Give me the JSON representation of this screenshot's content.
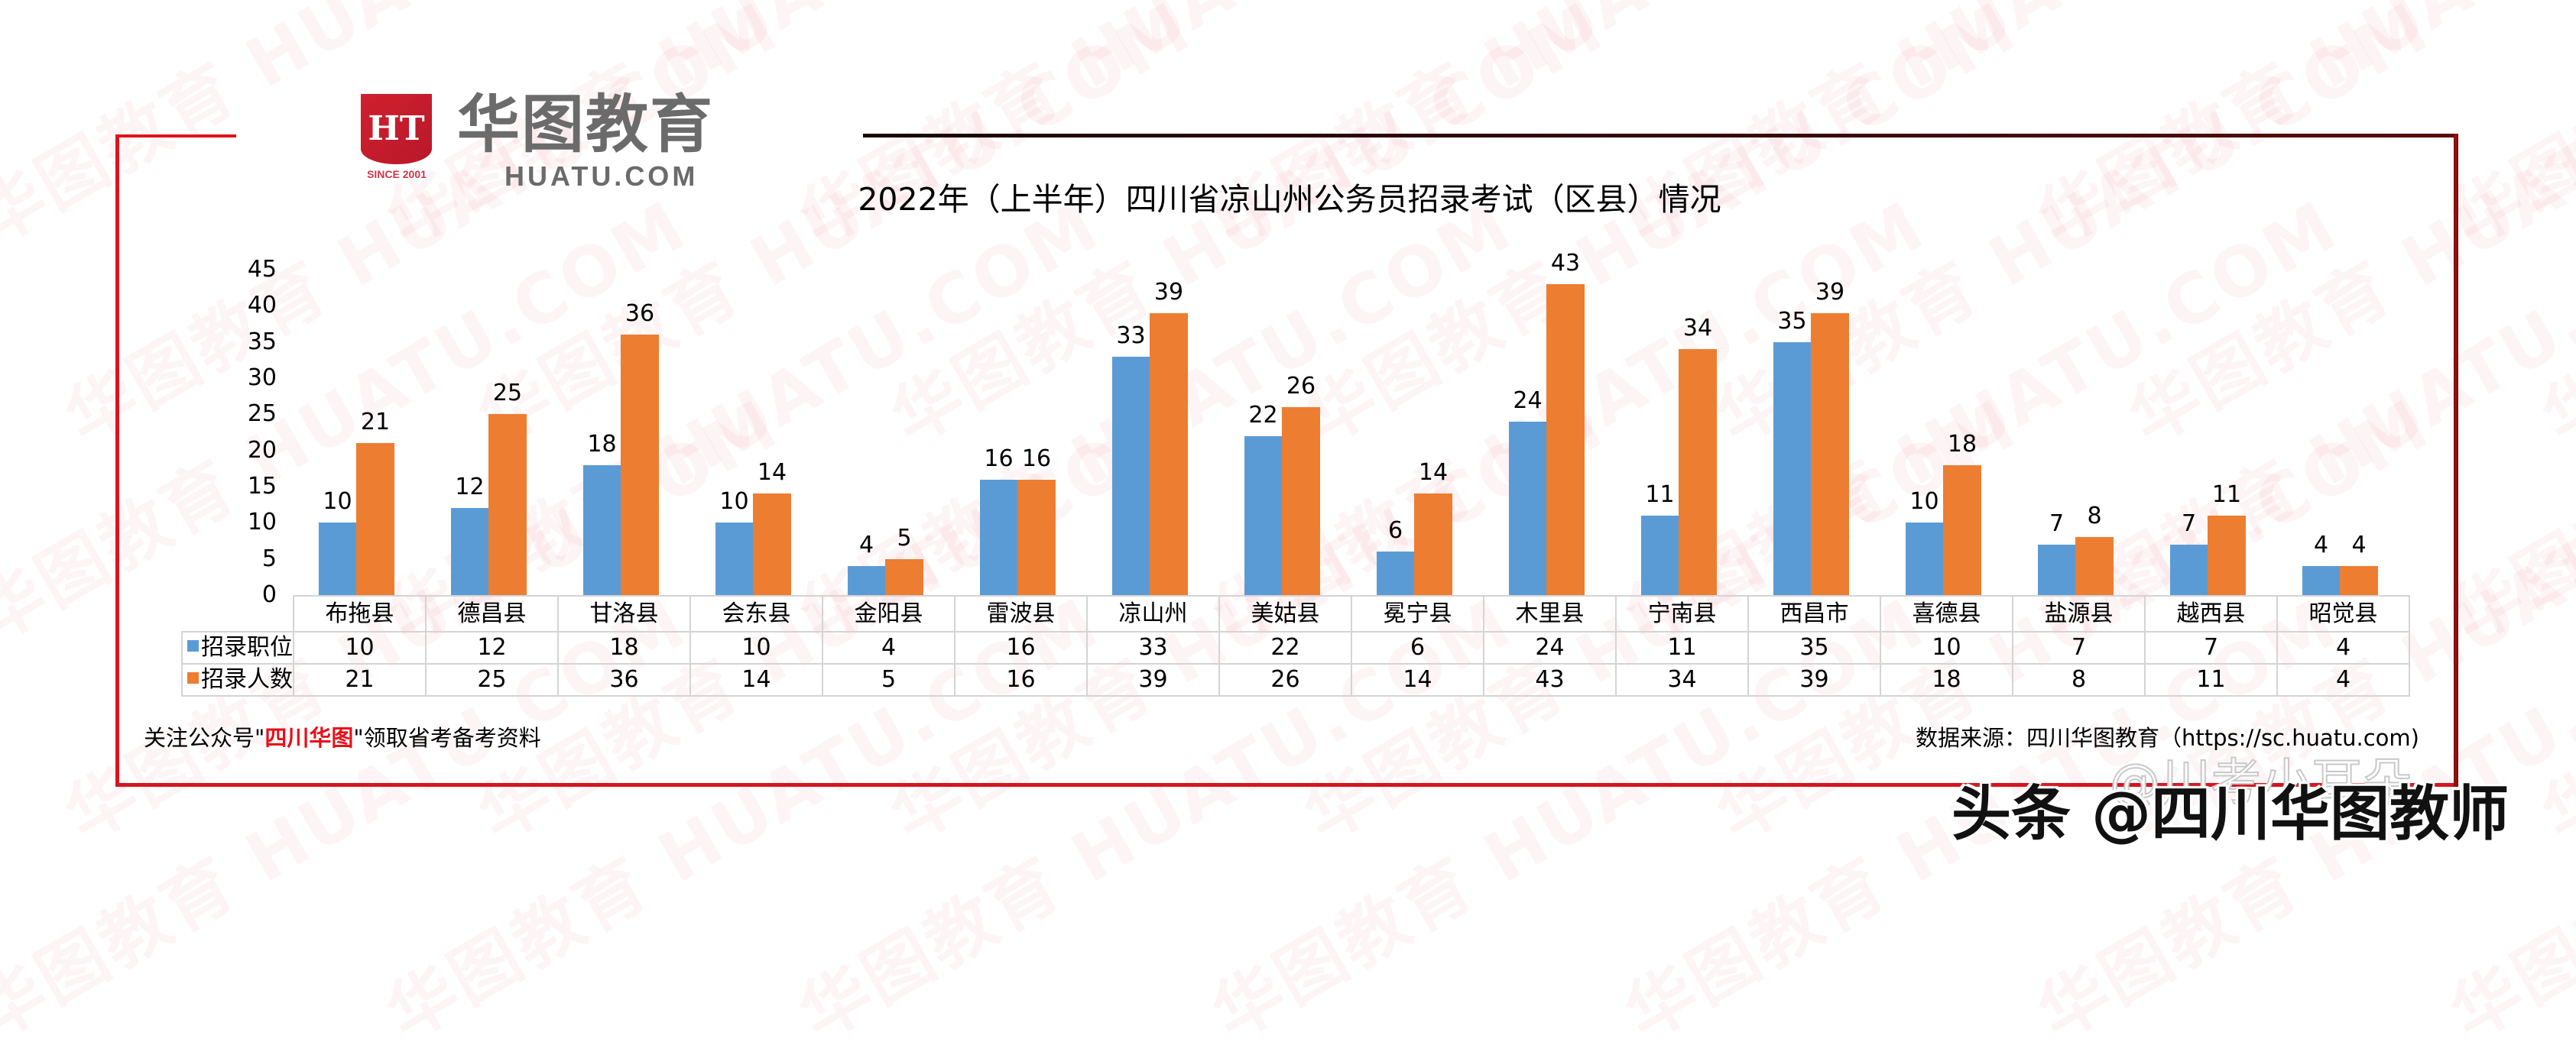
{
  "brand": {
    "logo_mark": "HT",
    "since": "SINCE 2001",
    "name_cn": "华图教育",
    "name_en": "HUATU.COM"
  },
  "background_watermark": "华图教育 HUATU.COM",
  "colors": {
    "series_positions": "#5b9bd5",
    "series_people": "#ed7d31",
    "frame_red": "#e3101b",
    "frame_dark": "#5a0a0a",
    "highlight": "#e8101a"
  },
  "chart_data": {
    "type": "bar",
    "title": "2022年（上半年）四川省凉山州公务员招录考试（区县）情况",
    "xlabel": "",
    "ylabel": "",
    "ylim": [
      0,
      45
    ],
    "yticks": [
      0,
      5,
      10,
      15,
      20,
      25,
      30,
      35,
      40,
      45
    ],
    "grid": false,
    "legend_position": "data-table",
    "data_labels": true,
    "categories": [
      "布拖县",
      "德昌县",
      "甘洛县",
      "会东县",
      "金阳县",
      "雷波县",
      "凉山州",
      "美姑县",
      "冕宁县",
      "木里县",
      "宁南县",
      "西昌市",
      "喜德县",
      "盐源县",
      "越西县",
      "昭觉县"
    ],
    "series": [
      {
        "name": "招录职位",
        "color": "#5b9bd5",
        "values": [
          10,
          12,
          18,
          10,
          4,
          16,
          33,
          22,
          6,
          24,
          11,
          35,
          10,
          7,
          7,
          4
        ]
      },
      {
        "name": "招录人数",
        "color": "#ed7d31",
        "values": [
          21,
          25,
          36,
          14,
          5,
          16,
          39,
          26,
          14,
          43,
          34,
          39,
          18,
          8,
          11,
          4
        ]
      }
    ]
  },
  "footer": {
    "left_prefix": "关注公众号\"",
    "left_highlight": "四川华图",
    "left_suffix": "\"领取省考备考资料",
    "right": "数据来源：四川华图教育（https://sc.huatu.com)"
  },
  "overlay": {
    "faint": "@川考小耳朵",
    "main": "头条 @四川华图教师"
  }
}
